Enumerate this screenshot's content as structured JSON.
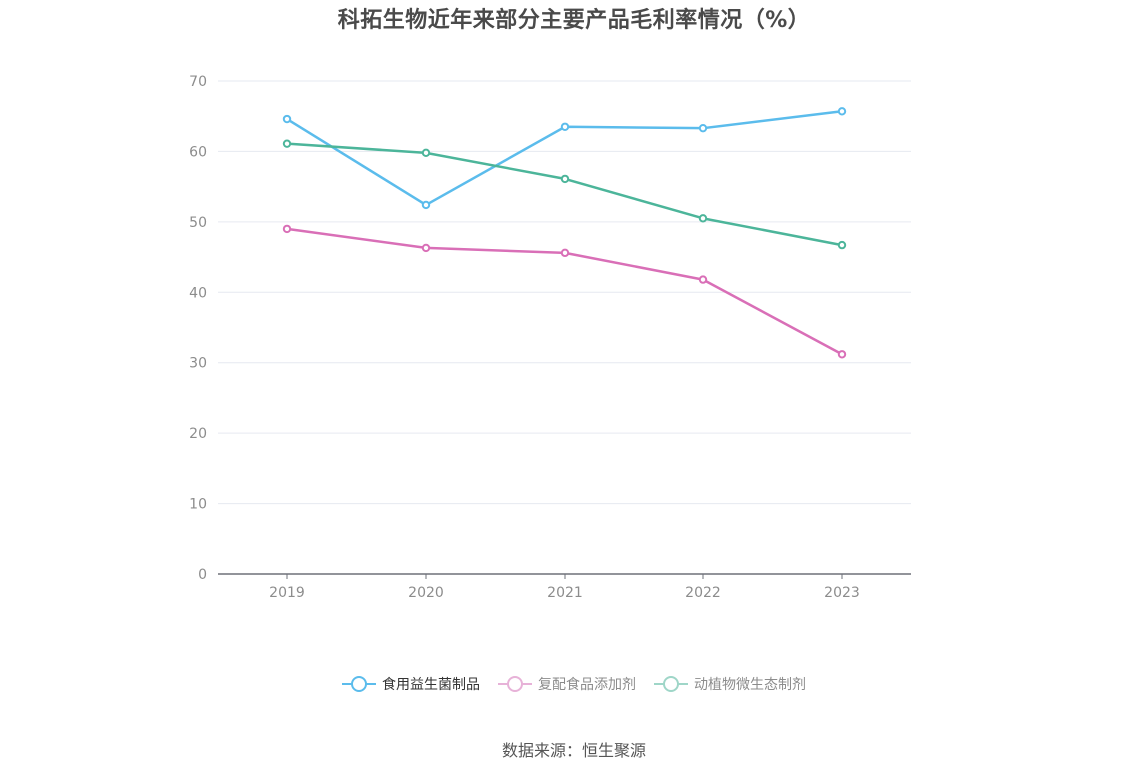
{
  "title": "科拓生物近年来部分主要产品毛利率情况（%）",
  "source": "数据来源：恒生聚源",
  "colors": {
    "series_0": "#5bbcec",
    "series_1": "#d96fb7",
    "series_2": "#4cb59a",
    "grid": "#e6e9f0",
    "axis": "#6e7079",
    "tick_text": "#8c8c8c"
  },
  "chart_data": {
    "type": "line",
    "title": "科拓生物近年来部分主要产品毛利率情况（%）",
    "xlabel": "",
    "ylabel": "",
    "x": [
      "2019",
      "2020",
      "2021",
      "2022",
      "2023"
    ],
    "ylim": [
      0,
      70
    ],
    "yticks": [
      "0",
      "10",
      "20",
      "30",
      "40",
      "50",
      "60",
      "70"
    ],
    "grid": true,
    "legend_position": "bottom-center",
    "series": [
      {
        "name": "食用益生菌制品",
        "values": [
          64.6,
          52.4,
          63.5,
          63.3,
          65.7
        ]
      },
      {
        "name": "复配食品添加剂",
        "values": [
          49.0,
          46.3,
          45.6,
          41.8,
          31.2
        ]
      },
      {
        "name": "动植物微生态制剂",
        "values": [
          61.1,
          59.8,
          56.1,
          50.5,
          46.7
        ]
      }
    ]
  }
}
